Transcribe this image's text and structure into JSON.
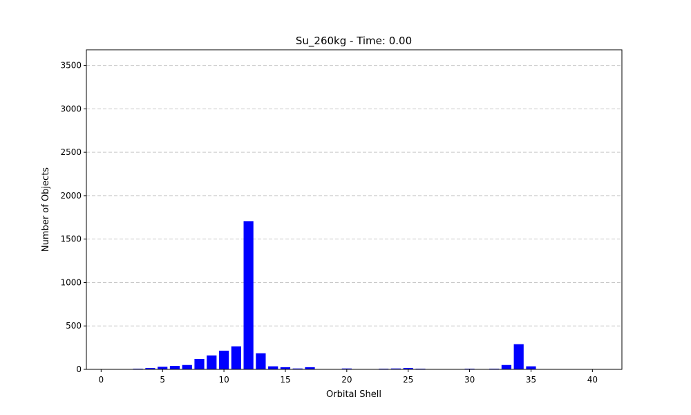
{
  "chart_data": {
    "type": "bar",
    "title": "Su_260kg - Time: 0.00",
    "xlabel": "Orbital Shell",
    "ylabel": "Number of Objects",
    "xlim": [
      -1.2,
      42.4
    ],
    "ylim": [
      0,
      3680
    ],
    "xticks": [
      0,
      5,
      10,
      15,
      20,
      25,
      30,
      35,
      40
    ],
    "yticks": [
      0,
      500,
      1000,
      1500,
      2000,
      2500,
      3000,
      3500
    ],
    "grid": "y-dashed",
    "bar_color": "#0000ff",
    "x": [
      0,
      1,
      2,
      3,
      4,
      5,
      6,
      7,
      8,
      9,
      10,
      11,
      12,
      13,
      14,
      15,
      16,
      17,
      18,
      19,
      20,
      21,
      22,
      23,
      24,
      25,
      26,
      27,
      28,
      29,
      30,
      31,
      32,
      33,
      34,
      35,
      36,
      37,
      38,
      39,
      40
    ],
    "values": [
      0,
      0,
      0,
      8,
      15,
      30,
      40,
      50,
      120,
      160,
      215,
      265,
      1705,
      185,
      35,
      25,
      10,
      25,
      0,
      0,
      10,
      0,
      0,
      8,
      10,
      15,
      8,
      0,
      0,
      0,
      8,
      0,
      8,
      50,
      290,
      35,
      0,
      0,
      0,
      0,
      0
    ]
  }
}
